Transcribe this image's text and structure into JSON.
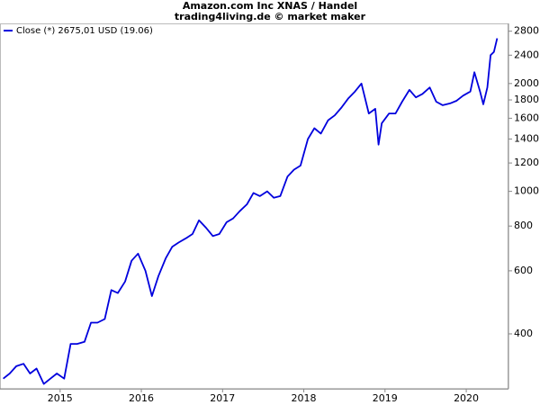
{
  "chart_data": {
    "type": "line",
    "title": "Amazon.com Inc XNAS / Handel",
    "subtitle": "trading4living.de © market maker",
    "log_y": true,
    "grid": false,
    "legend": "top-left",
    "x": [
      2014.3,
      2014.38,
      2014.46,
      2014.55,
      2014.63,
      2014.71,
      2014.8,
      2014.88,
      2014.96,
      2015.05,
      2015.13,
      2015.21,
      2015.3,
      2015.38,
      2015.46,
      2015.55,
      2015.63,
      2015.71,
      2015.8,
      2015.88,
      2015.96,
      2016.05,
      2016.13,
      2016.21,
      2016.3,
      2016.38,
      2016.46,
      2016.55,
      2016.63,
      2016.71,
      2016.8,
      2016.88,
      2016.96,
      2017.05,
      2017.13,
      2017.21,
      2017.3,
      2017.38,
      2017.46,
      2017.55,
      2017.63,
      2017.71,
      2017.8,
      2017.88,
      2017.96,
      2018.05,
      2018.13,
      2018.21,
      2018.3,
      2018.38,
      2018.46,
      2018.55,
      2018.63,
      2018.71,
      2018.8,
      2018.88,
      2018.92,
      2018.96,
      2019.05,
      2019.13,
      2019.21,
      2019.3,
      2019.38,
      2019.46,
      2019.55,
      2019.63,
      2019.71,
      2019.8,
      2019.88,
      2019.96,
      2020.05,
      2020.1,
      2020.17,
      2020.21,
      2020.26,
      2020.3,
      2020.34,
      2020.38
    ],
    "series": [
      {
        "name": "Close (*) 2675,01 USD (19.06)",
        "color": "#0000dd",
        "values": [
          300,
          310,
          325,
          330,
          310,
          320,
          290,
          300,
          310,
          300,
          375,
          375,
          380,
          430,
          430,
          440,
          530,
          520,
          560,
          640,
          670,
          600,
          510,
          580,
          650,
          700,
          720,
          740,
          760,
          830,
          790,
          750,
          760,
          820,
          840,
          880,
          920,
          990,
          970,
          1000,
          960,
          970,
          1100,
          1150,
          1180,
          1400,
          1500,
          1450,
          1580,
          1630,
          1710,
          1820,
          1900,
          2000,
          1650,
          1700,
          1350,
          1550,
          1650,
          1650,
          1780,
          1920,
          1830,
          1870,
          1950,
          1780,
          1740,
          1760,
          1790,
          1850,
          1900,
          2150,
          1900,
          1750,
          1950,
          2400,
          2450,
          2675
        ]
      }
    ],
    "xlim": [
      2014.26,
      2020.52
    ],
    "xticks": [
      2015,
      2016,
      2017,
      2018,
      2019,
      2020
    ],
    "ylim": [
      281,
      2944
    ],
    "yticks": [
      400,
      600,
      800,
      1000,
      1200,
      1400,
      1600,
      1800,
      2000,
      2400,
      2800
    ]
  }
}
